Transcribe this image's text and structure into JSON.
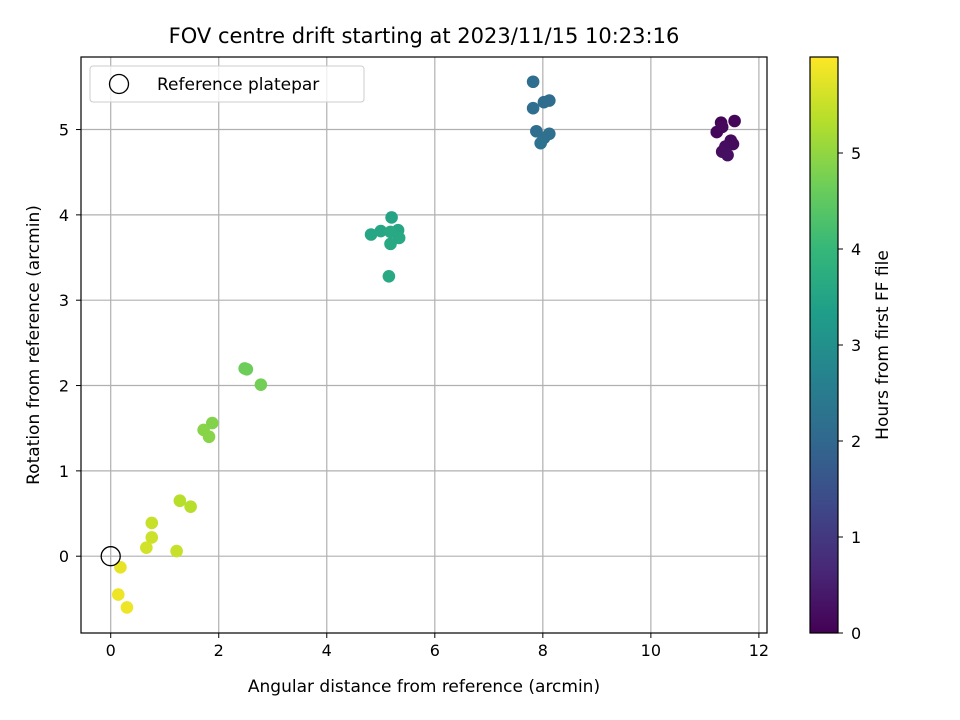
{
  "chart_data": {
    "type": "scatter",
    "title": "FOV centre drift starting at 2023/11/15 10:23:16",
    "xlabel": "Angular distance from reference (arcmin)",
    "ylabel": "Rotation from reference (arcmin)",
    "xlim": [
      -0.55,
      12.15
    ],
    "ylim": [
      -0.9,
      5.85
    ],
    "xticks": [
      0,
      2,
      4,
      6,
      8,
      10,
      12
    ],
    "yticks": [
      0,
      1,
      2,
      3,
      4,
      5
    ],
    "grid": true,
    "legend": {
      "location": "upper-left",
      "entries": [
        "Reference platepar"
      ]
    },
    "reference_point": {
      "x": 0,
      "y": 0
    },
    "colorbar": {
      "label": "Hours from first FF file",
      "colormap": "viridis",
      "range": [
        0,
        6
      ],
      "ticks": [
        0,
        1,
        2,
        3,
        4,
        5
      ],
      "colors": [
        "#440154",
        "#482878",
        "#3e4989",
        "#31688e",
        "#26828e",
        "#1f9e89",
        "#35b779",
        "#6ece58",
        "#b5de2b",
        "#fde725"
      ]
    },
    "points": [
      {
        "x": 11.3,
        "y": 5.08,
        "h": 0.05
      },
      {
        "x": 11.55,
        "y": 5.1,
        "h": 0.08
      },
      {
        "x": 11.22,
        "y": 4.97,
        "h": 0.1
      },
      {
        "x": 11.32,
        "y": 5.03,
        "h": 0.12
      },
      {
        "x": 11.48,
        "y": 4.87,
        "h": 0.15
      },
      {
        "x": 11.52,
        "y": 4.83,
        "h": 0.18
      },
      {
        "x": 11.38,
        "y": 4.8,
        "h": 0.2
      },
      {
        "x": 11.32,
        "y": 4.74,
        "h": 0.22
      },
      {
        "x": 11.42,
        "y": 4.7,
        "h": 0.25
      },
      {
        "x": 8.12,
        "y": 5.34,
        "h": 2.1
      },
      {
        "x": 8.02,
        "y": 5.32,
        "h": 2.1
      },
      {
        "x": 7.82,
        "y": 5.56,
        "h": 2.15
      },
      {
        "x": 7.82,
        "y": 5.25,
        "h": 2.15
      },
      {
        "x": 7.88,
        "y": 4.98,
        "h": 2.15
      },
      {
        "x": 8.12,
        "y": 4.95,
        "h": 2.2
      },
      {
        "x": 8.02,
        "y": 4.9,
        "h": 2.2
      },
      {
        "x": 7.96,
        "y": 4.84,
        "h": 2.25
      },
      {
        "x": 5.2,
        "y": 3.97,
        "h": 3.5
      },
      {
        "x": 5.32,
        "y": 3.82,
        "h": 3.55
      },
      {
        "x": 5.0,
        "y": 3.81,
        "h": 3.55
      },
      {
        "x": 5.18,
        "y": 3.8,
        "h": 3.6
      },
      {
        "x": 4.82,
        "y": 3.77,
        "h": 3.55
      },
      {
        "x": 5.34,
        "y": 3.73,
        "h": 3.6
      },
      {
        "x": 5.18,
        "y": 3.66,
        "h": 3.6
      },
      {
        "x": 5.15,
        "y": 3.28,
        "h": 3.6
      },
      {
        "x": 2.48,
        "y": 2.2,
        "h": 4.65
      },
      {
        "x": 2.52,
        "y": 2.19,
        "h": 4.65
      },
      {
        "x": 2.78,
        "y": 2.01,
        "h": 4.7
      },
      {
        "x": 1.88,
        "y": 1.56,
        "h": 4.85
      },
      {
        "x": 1.72,
        "y": 1.48,
        "h": 4.9
      },
      {
        "x": 1.82,
        "y": 1.4,
        "h": 4.9
      },
      {
        "x": 1.28,
        "y": 0.65,
        "h": 5.35
      },
      {
        "x": 1.48,
        "y": 0.58,
        "h": 5.35
      },
      {
        "x": 0.76,
        "y": 0.39,
        "h": 5.5
      },
      {
        "x": 0.76,
        "y": 0.22,
        "h": 5.55
      },
      {
        "x": 0.66,
        "y": 0.1,
        "h": 5.6
      },
      {
        "x": 1.22,
        "y": 0.06,
        "h": 5.5
      },
      {
        "x": 0.18,
        "y": -0.13,
        "h": 5.8
      },
      {
        "x": 0.14,
        "y": -0.45,
        "h": 5.85
      },
      {
        "x": 0.3,
        "y": -0.6,
        "h": 5.85
      }
    ]
  }
}
